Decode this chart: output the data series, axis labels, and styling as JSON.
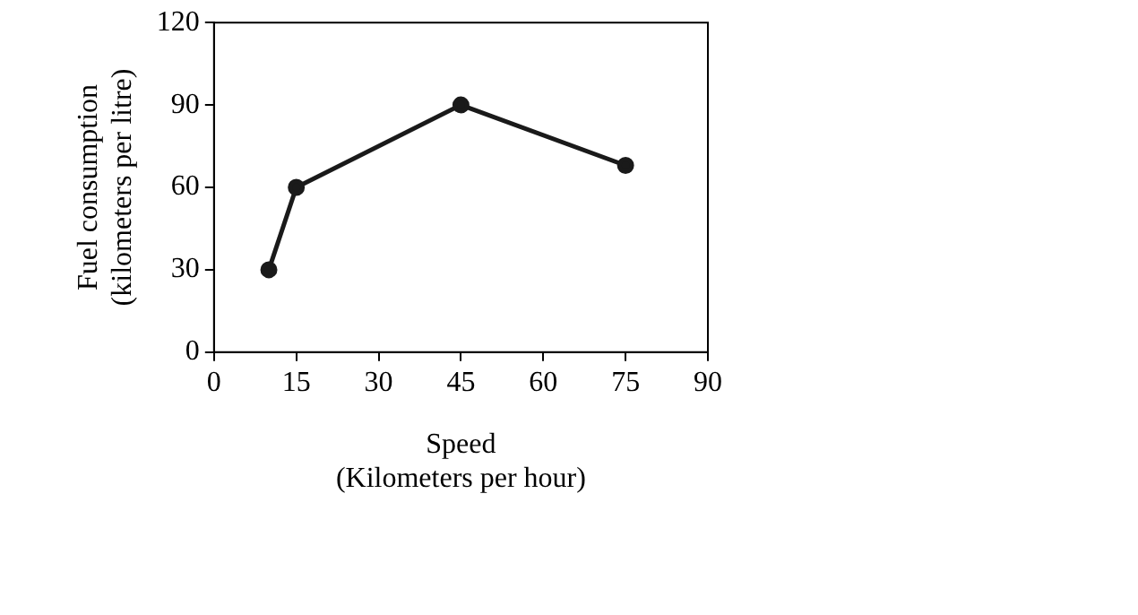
{
  "chart_data": {
    "type": "line",
    "xlabel": "Speed\n(Kilometers per hour)",
    "ylabel": "Fuel consumption\n(kilometers per litre)",
    "x": [
      10,
      15,
      45,
      75
    ],
    "series": [
      {
        "color": "#1a1a1a",
        "values": [
          30,
          60,
          90,
          68
        ]
      }
    ],
    "xlim": [
      0,
      90
    ],
    "xticks": [
      0,
      15,
      30,
      45,
      60,
      75,
      90
    ],
    "ylim": [
      0,
      120
    ],
    "yticks": [
      0,
      30,
      60,
      90,
      120
    ],
    "grid": false,
    "legend": false,
    "marker": "circle",
    "line_style": "solid"
  }
}
